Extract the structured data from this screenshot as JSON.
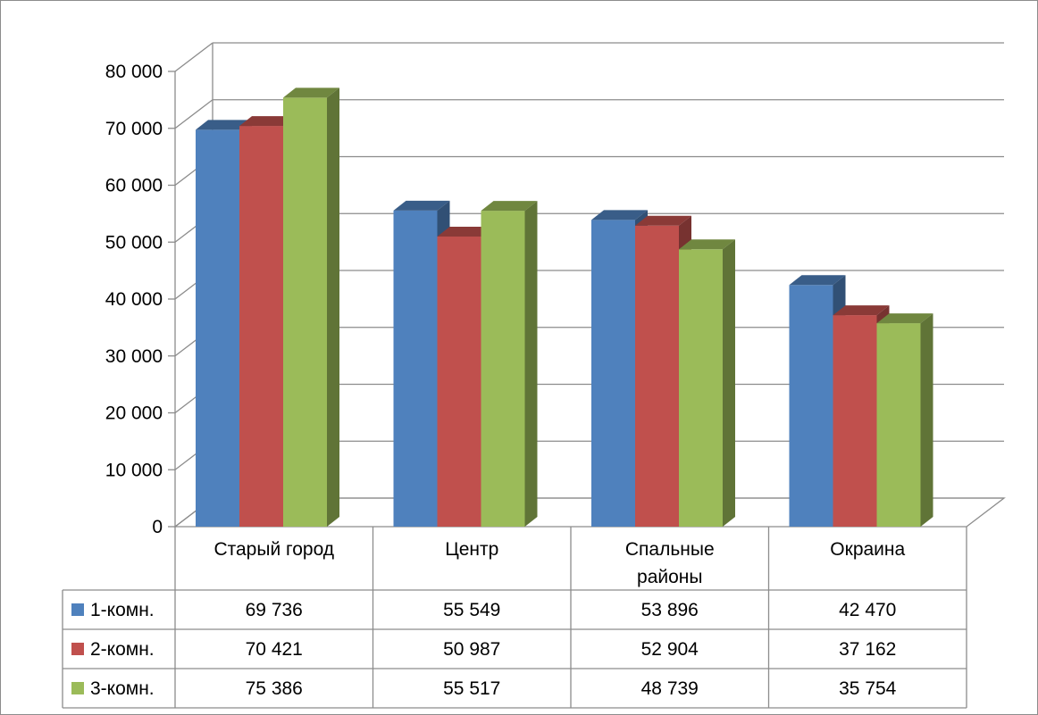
{
  "chart_data": {
    "type": "bar",
    "categories": [
      "Старый город",
      "Центр",
      "Спальные районы",
      "Окраина"
    ],
    "category_lines": [
      [
        "Старый город"
      ],
      [
        "Центр"
      ],
      [
        "Спальные",
        "районы"
      ],
      [
        "Окраина"
      ]
    ],
    "series": [
      {
        "name": "1-комн.",
        "color": "#4F81BD",
        "values": [
          69736,
          55549,
          53896,
          42470
        ],
        "labels": [
          "69 736",
          "55 549",
          "53 896",
          "42 470"
        ]
      },
      {
        "name": "2-комн.",
        "color": "#C0504D",
        "values": [
          70421,
          50987,
          52904,
          37162
        ],
        "labels": [
          "70 421",
          "50 987",
          "52 904",
          "37 162"
        ]
      },
      {
        "name": "3-комн.",
        "color": "#9BBB59",
        "values": [
          75386,
          55517,
          48739,
          35754
        ],
        "labels": [
          "75 386",
          "55 517",
          "48 739",
          "35 754"
        ]
      }
    ],
    "yticks": [
      0,
      10000,
      20000,
      30000,
      40000,
      50000,
      60000,
      70000,
      80000
    ],
    "ytick_labels": [
      "0",
      "10 000",
      "20 000",
      "30 000",
      "40 000",
      "50 000",
      "60 000",
      "70 000",
      "80 000"
    ],
    "ylim": [
      0,
      80000
    ],
    "grid": true,
    "legend": "data-table",
    "title": "",
    "xlabel": "",
    "ylabel": ""
  }
}
